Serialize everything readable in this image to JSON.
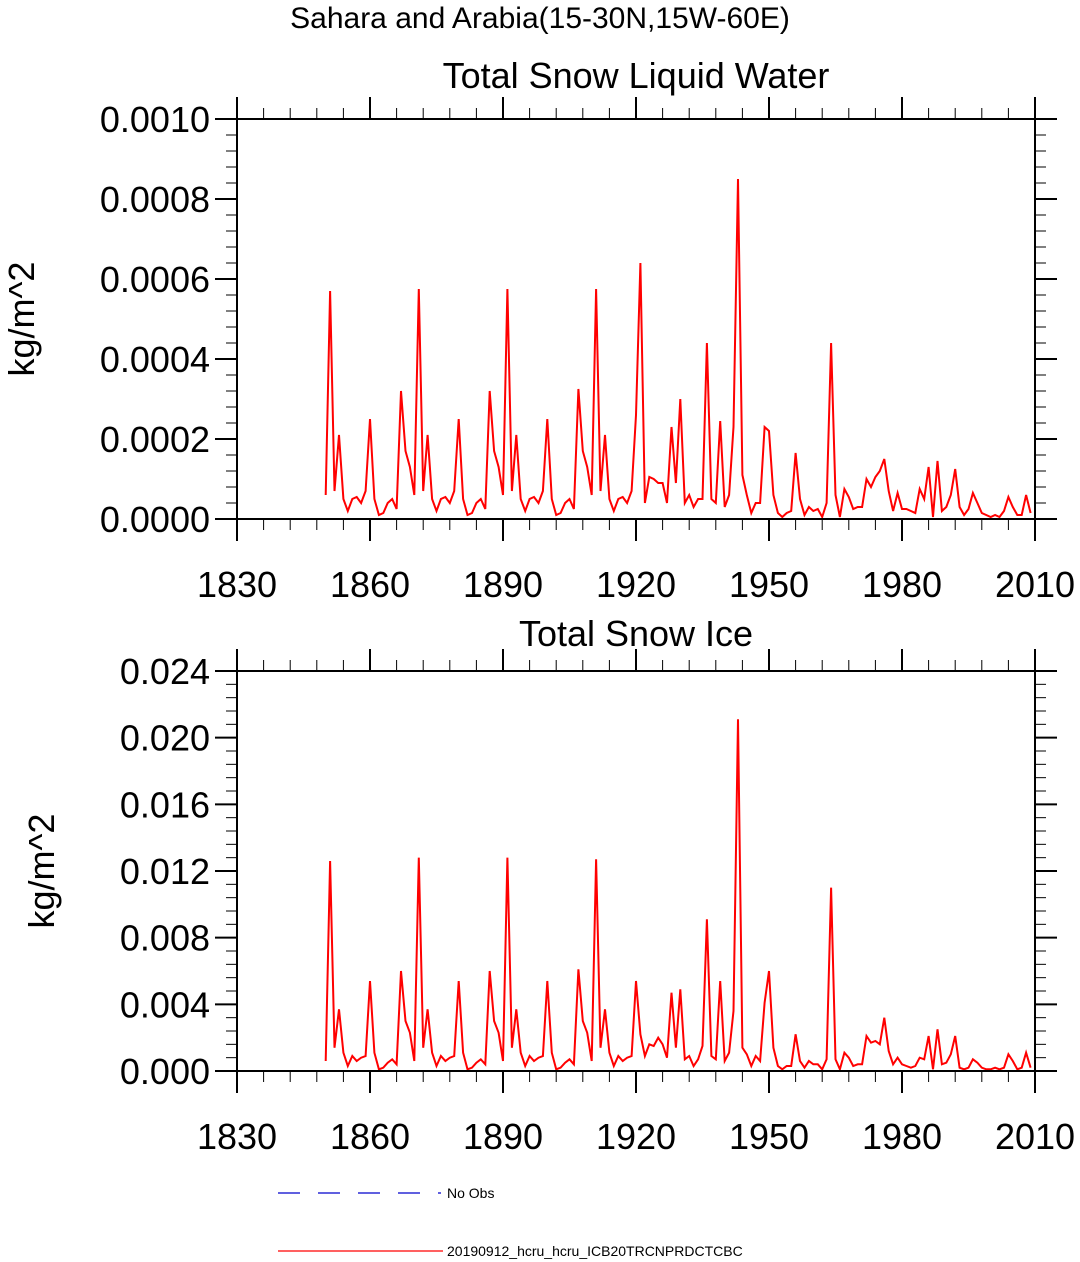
{
  "figure_title": "Sahara and Arabia(15-30N,15W-60E)",
  "legend": [
    {
      "label": "No Obs",
      "color": "#0000cc",
      "dash": true
    },
    {
      "label": "20190912_hcru_hcru_ICB20TRCNPRDCTCBC",
      "color": "#ff0000",
      "dash": false
    }
  ],
  "chart_data": [
    {
      "type": "line",
      "title": "Total Snow Liquid Water",
      "xlabel": "",
      "ylabel": "kg/m^2",
      "xlim": [
        1830,
        2010
      ],
      "ylim": [
        0,
        0.001
      ],
      "xticks": [
        1830,
        1860,
        1890,
        1920,
        1950,
        1980,
        2010
      ],
      "xtick_labels": [
        "1830",
        "1860",
        "1890",
        "1920",
        "1950",
        "1980",
        "2010"
      ],
      "yticks": [
        0,
        0.0002,
        0.0004,
        0.0006,
        0.0008,
        0.001
      ],
      "ytick_labels": [
        "0.0000",
        "0.0002",
        "0.0004",
        "0.0006",
        "0.0008",
        "0.0010"
      ],
      "series": [
        {
          "name": "20190912_hcru_hcru_ICB20TRCNPRDCTCBC",
          "color": "#ff0000",
          "x": [
            1850,
            1851,
            1852,
            1853,
            1854,
            1855,
            1856,
            1857,
            1858,
            1859,
            1860,
            1861,
            1862,
            1863,
            1864,
            1865,
            1866,
            1867,
            1868,
            1869,
            1870,
            1871,
            1872,
            1873,
            1874,
            1875,
            1876,
            1877,
            1878,
            1879,
            1880,
            1881,
            1882,
            1883,
            1884,
            1885,
            1886,
            1887,
            1888,
            1889,
            1890,
            1891,
            1892,
            1893,
            1894,
            1895,
            1896,
            1897,
            1898,
            1899,
            1900,
            1901,
            1902,
            1903,
            1904,
            1905,
            1906,
            1907,
            1908,
            1909,
            1910,
            1911,
            1912,
            1913,
            1914,
            1915,
            1916,
            1917,
            1918,
            1919,
            1920,
            1921,
            1922,
            1923,
            1924,
            1925,
            1926,
            1927,
            1928,
            1929,
            1930,
            1931,
            1932,
            1933,
            1934,
            1935,
            1936,
            1937,
            1938,
            1939,
            1940,
            1941,
            1942,
            1943,
            1944,
            1945,
            1946,
            1947,
            1948,
            1949,
            1950,
            1951,
            1952,
            1953,
            1954,
            1955,
            1956,
            1957,
            1958,
            1959,
            1960,
            1961,
            1962,
            1963,
            1964,
            1965,
            1966,
            1967,
            1968,
            1969,
            1970,
            1971,
            1972,
            1973,
            1974,
            1975,
            1976,
            1977,
            1978,
            1979,
            1980,
            1981,
            1982,
            1983,
            1984,
            1985,
            1986,
            1987,
            1988,
            1989,
            1990,
            1991,
            1992,
            1993,
            1994,
            1995,
            1996,
            1997,
            1998,
            1999,
            2000,
            2001,
            2002,
            2003,
            2004,
            2005,
            2006,
            2007,
            2008,
            2009
          ],
          "y": [
            6e-05,
            0.00057,
            7e-05,
            0.00021,
            5e-05,
            2e-05,
            5e-05,
            5.5e-05,
            4e-05,
            7e-05,
            0.00025,
            5e-05,
            1e-05,
            1.5e-05,
            4e-05,
            5e-05,
            2.5e-05,
            0.00032,
            0.00017,
            0.00013,
            6e-05,
            0.000575,
            7e-05,
            0.00021,
            5e-05,
            2e-05,
            5e-05,
            5.5e-05,
            4e-05,
            7e-05,
            0.00025,
            5e-05,
            1e-05,
            1.5e-05,
            4e-05,
            5e-05,
            2.5e-05,
            0.00032,
            0.00017,
            0.00013,
            6e-05,
            0.000575,
            7e-05,
            0.00021,
            5e-05,
            2e-05,
            5e-05,
            5.5e-05,
            4e-05,
            7e-05,
            0.00025,
            5e-05,
            1e-05,
            1.5e-05,
            4e-05,
            5e-05,
            2.5e-05,
            0.000325,
            0.00017,
            0.00013,
            6e-05,
            0.000575,
            7e-05,
            0.00021,
            5e-05,
            2e-05,
            5e-05,
            5.5e-05,
            4e-05,
            7e-05,
            0.00026,
            0.00064,
            4e-05,
            0.000105,
            0.0001,
            9e-05,
            9e-05,
            4e-05,
            0.00023,
            9e-05,
            0.0003,
            4e-05,
            6e-05,
            3e-05,
            5e-05,
            5e-05,
            0.00044,
            5e-05,
            4e-05,
            0.000245,
            3e-05,
            6e-05,
            0.00023,
            0.00085,
            0.00011,
            6e-05,
            1.5e-05,
            4e-05,
            4e-05,
            0.00023,
            0.00022,
            6e-05,
            1.5e-05,
            5e-06,
            1.5e-05,
            2e-05,
            0.000165,
            5e-05,
            1e-05,
            3e-05,
            2e-05,
            2.5e-05,
            5e-06,
            4e-05,
            0.00044,
            6e-05,
            5e-06,
            7.5e-05,
            5.5e-05,
            2.5e-05,
            3e-05,
            3e-05,
            0.0001,
            8e-05,
            0.000105,
            0.00012,
            0.00015,
            7e-05,
            2e-05,
            6.5e-05,
            2.5e-05,
            2.5e-05,
            2e-05,
            1.5e-05,
            7.5e-05,
            5e-05,
            0.00013,
            5e-06,
            0.000145,
            2e-05,
            3e-05,
            6e-05,
            0.000125,
            3e-05,
            1e-05,
            2.5e-05,
            6.5e-05,
            4e-05,
            1.5e-05,
            1e-05,
            5e-06,
            1e-05,
            5e-06,
            2e-05,
            5.5e-05,
            3e-05,
            1e-05,
            1e-05,
            6e-05,
            1.5e-05
          ]
        }
      ]
    },
    {
      "type": "line",
      "title": "Total Snow Ice",
      "xlabel": "",
      "ylabel": "kg/m^2",
      "xlim": [
        1830,
        2010
      ],
      "ylim": [
        0,
        0.024
      ],
      "xticks": [
        1830,
        1860,
        1890,
        1920,
        1950,
        1980,
        2010
      ],
      "xtick_labels": [
        "1830",
        "1860",
        "1890",
        "1920",
        "1950",
        "1980",
        "2010"
      ],
      "yticks": [
        0,
        0.004,
        0.008,
        0.012,
        0.016,
        0.02,
        0.024
      ],
      "ytick_labels": [
        "0.000",
        "0.004",
        "0.008",
        "0.012",
        "0.016",
        "0.020",
        "0.024"
      ],
      "series": [
        {
          "name": "20190912_hcru_hcru_ICB20TRCNPRDCTCBC",
          "color": "#ff0000",
          "x": [
            1850,
            1851,
            1852,
            1853,
            1854,
            1855,
            1856,
            1857,
            1858,
            1859,
            1860,
            1861,
            1862,
            1863,
            1864,
            1865,
            1866,
            1867,
            1868,
            1869,
            1870,
            1871,
            1872,
            1873,
            1874,
            1875,
            1876,
            1877,
            1878,
            1879,
            1880,
            1881,
            1882,
            1883,
            1884,
            1885,
            1886,
            1887,
            1888,
            1889,
            1890,
            1891,
            1892,
            1893,
            1894,
            1895,
            1896,
            1897,
            1898,
            1899,
            1900,
            1901,
            1902,
            1903,
            1904,
            1905,
            1906,
            1907,
            1908,
            1909,
            1910,
            1911,
            1912,
            1913,
            1914,
            1915,
            1916,
            1917,
            1918,
            1919,
            1920,
            1921,
            1922,
            1923,
            1924,
            1925,
            1926,
            1927,
            1928,
            1929,
            1930,
            1931,
            1932,
            1933,
            1934,
            1935,
            1936,
            1937,
            1938,
            1939,
            1940,
            1941,
            1942,
            1943,
            1944,
            1945,
            1946,
            1947,
            1948,
            1949,
            1950,
            1951,
            1952,
            1953,
            1954,
            1955,
            1956,
            1957,
            1958,
            1959,
            1960,
            1961,
            1962,
            1963,
            1964,
            1965,
            1966,
            1967,
            1968,
            1969,
            1970,
            1971,
            1972,
            1973,
            1974,
            1975,
            1976,
            1977,
            1978,
            1979,
            1980,
            1981,
            1982,
            1983,
            1984,
            1985,
            1986,
            1987,
            1988,
            1989,
            1990,
            1991,
            1992,
            1993,
            1994,
            1995,
            1996,
            1997,
            1998,
            1999,
            2000,
            2001,
            2002,
            2003,
            2004,
            2005,
            2006,
            2007,
            2008,
            2009
          ],
          "y": [
            0.0006,
            0.0126,
            0.0014,
            0.0037,
            0.0011,
            0.0003,
            0.0009,
            0.0006,
            0.0008,
            0.0009,
            0.0054,
            0.0011,
            0.0001,
            0.0002,
            0.0005,
            0.0007,
            0.0004,
            0.006,
            0.003,
            0.0023,
            0.0006,
            0.0128,
            0.0014,
            0.0037,
            0.0011,
            0.0003,
            0.0009,
            0.0006,
            0.0008,
            0.0009,
            0.0054,
            0.0011,
            0.0001,
            0.0002,
            0.0005,
            0.0007,
            0.0004,
            0.006,
            0.003,
            0.0023,
            0.0006,
            0.0128,
            0.0014,
            0.0037,
            0.0011,
            0.0003,
            0.0009,
            0.0006,
            0.0008,
            0.0009,
            0.0054,
            0.0011,
            0.0001,
            0.0002,
            0.0005,
            0.0007,
            0.0004,
            0.0061,
            0.003,
            0.0023,
            0.0006,
            0.0127,
            0.0014,
            0.0037,
            0.0011,
            0.0003,
            0.0009,
            0.0006,
            0.0008,
            0.0009,
            0.0054,
            0.0022,
            0.0009,
            0.0016,
            0.0015,
            0.002,
            0.0016,
            0.0008,
            0.0047,
            0.0014,
            0.0049,
            0.0007,
            0.0009,
            0.0003,
            0.0007,
            0.0015,
            0.0091,
            0.0009,
            0.0007,
            0.0054,
            0.0006,
            0.0011,
            0.0036,
            0.0211,
            0.0014,
            0.001,
            0.0003,
            0.0009,
            0.0006,
            0.0041,
            0.006,
            0.0014,
            0.0003,
            0.0001,
            0.0003,
            0.0003,
            0.0022,
            0.0006,
            0.0002,
            0.0006,
            0.0004,
            0.0004,
            0.0001,
            0.0007,
            0.011,
            0.0007,
            0.0001,
            0.0011,
            0.0008,
            0.0003,
            0.0004,
            0.0004,
            0.0021,
            0.0017,
            0.0018,
            0.0016,
            0.0032,
            0.0012,
            0.0004,
            0.0008,
            0.0004,
            0.0003,
            0.0002,
            0.0003,
            0.0008,
            0.0007,
            0.0021,
            0.0001,
            0.0025,
            0.0004,
            0.0005,
            0.001,
            0.0021,
            0.0002,
            0.0001,
            0.0002,
            0.0007,
            0.0005,
            0.0002,
            0.0001,
            0.0001,
            0.0002,
            0.0001,
            0.0002,
            0.001,
            0.0006,
            0.0001,
            0.0002,
            0.0011,
            0.0002
          ]
        }
      ]
    }
  ]
}
